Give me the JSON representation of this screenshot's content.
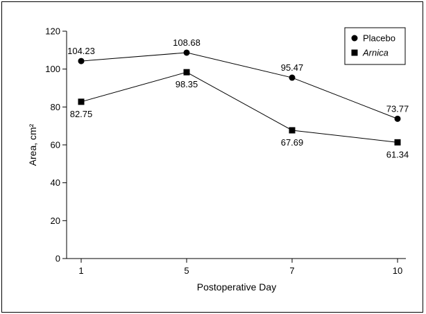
{
  "chart_data": {
    "type": "line",
    "title": "",
    "xlabel": "Postoperative Day",
    "ylabel": "Area, cm²",
    "categories": [
      "1",
      "5",
      "7",
      "10"
    ],
    "ylim": [
      0,
      120
    ],
    "yticks": [
      0,
      20,
      40,
      60,
      80,
      100,
      120
    ],
    "grid": false,
    "legend_position": "top-right",
    "series": [
      {
        "name": "Placebo",
        "marker": "circle",
        "values": [
          104.23,
          108.68,
          95.47,
          73.77
        ],
        "labels": [
          "104.23",
          "108.68",
          "95.47",
          "73.77"
        ],
        "label_placement": [
          "above",
          "above",
          "above",
          "above"
        ],
        "color": "#000000"
      },
      {
        "name": "Arnica",
        "name_style": "italic",
        "marker": "square",
        "values": [
          82.75,
          98.35,
          67.69,
          61.34
        ],
        "labels": [
          "82.75",
          "98.35",
          "67.69",
          "61.34"
        ],
        "label_placement": [
          "below",
          "below",
          "below",
          "below"
        ],
        "color": "#000000"
      }
    ]
  }
}
